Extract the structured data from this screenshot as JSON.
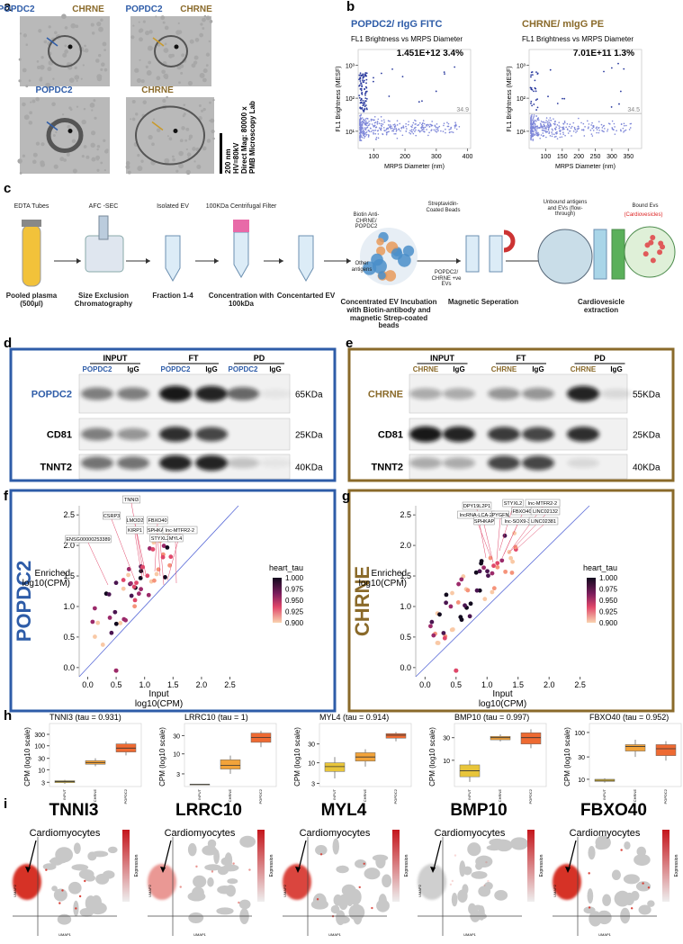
{
  "panel_a": {
    "letter": "a",
    "labels": [
      "POPDC2",
      "CHRNE",
      "POPDC2",
      "CHRNE",
      "POPDC2",
      "CHRNE"
    ],
    "scale_bar": "200 nm",
    "microscope": [
      "HV=80kV",
      "Direct Mag: 80000 x",
      "PMB Microscopy Lab"
    ]
  },
  "panel_b": {
    "letter": "b",
    "subtitle": "FL1 Brightness  vs MRPS Diameter",
    "ylabel": "FL1 Brightness (MESF)",
    "xlabel": "MRPS Diameter (nm)",
    "yticks": [
      {
        "value": 10,
        "label": "10¹"
      },
      {
        "value": 100,
        "label": "10²"
      },
      {
        "value": 1000,
        "label": "10³"
      }
    ],
    "ylim": [
      3,
      3000
    ],
    "plots": [
      {
        "title": "POPDC2/ rIgG FITC",
        "stat": "1.451E+12  3.4%",
        "threshold": 34.9,
        "xlim": [
          50,
          410
        ],
        "xticks": [
          100,
          200,
          300,
          400
        ]
      },
      {
        "title": "CHRNE/ mIgG PE",
        "stat": "7.01E+11  1.3%",
        "threshold": 34.5,
        "xlim": [
          50,
          390
        ],
        "xticks": [
          100,
          150,
          200,
          250,
          300,
          350
        ]
      }
    ]
  },
  "panel_c": {
    "letter": "c",
    "steps": [
      {
        "top": "EDTA Tubes",
        "bottom": "Pooled plasma (500µl)"
      },
      {
        "top": "AFC -SEC",
        "bottom": "Size Exclusion Chromatography"
      },
      {
        "top": "Isolated EV",
        "bottom": "Fraction 1-4"
      },
      {
        "top": "100KDa Centrifugal Filter",
        "bottom": "Concentration with 100kDa"
      },
      {
        "bottom": "Concentarted EV"
      },
      {
        "bottom": "Concentrated EV Incubation with Biotin-antibody and magnetic Strep-coated beads"
      },
      {
        "bottom": "Magnetic Seperation"
      },
      {
        "bottom": "Cardiovesicle extraction"
      }
    ],
    "callouts": [
      "Biotin Anti-CHRNE/ POPDC2",
      "Streptavidin-Coated Beads",
      "Other antigens",
      "POPDC2/ CHRNE +ve EVs",
      "Unbound antigens and EVs (flow-through)",
      "Bound Evs",
      "(Cardiovesicles)"
    ]
  },
  "panel_d": {
    "letter": "d",
    "groups": [
      "INPUT",
      "FT",
      "PD"
    ],
    "lanes": [
      "POPDC2",
      "IgG"
    ],
    "rows": [
      {
        "name": "POPDC2",
        "size": "65KDa"
      },
      {
        "name": "CD81",
        "size": "25KDa"
      },
      {
        "name": "TNNT2",
        "size": "40KDa"
      }
    ]
  },
  "panel_e": {
    "letter": "e",
    "groups": [
      "INPUT",
      "FT",
      "PD"
    ],
    "lanes": [
      "CHRNE",
      "IgG"
    ],
    "rows": [
      {
        "name": "CHRNE",
        "size": "55KDa"
      },
      {
        "name": "CD81",
        "size": "25KDa"
      },
      {
        "name": "TNNT2",
        "size": "40KDa"
      }
    ]
  },
  "panel_f": {
    "letter": "f",
    "side_label": "POPDC2",
    "genes": [
      "TNNI3",
      "CSRP3",
      "LMOD2",
      "KIRP1",
      "FBXO40",
      "SPHKAP",
      "lnc-MTFR2-2",
      "STYXL2",
      "MYL4",
      "ENSG00000253389"
    ]
  },
  "panel_g": {
    "letter": "g",
    "side_label": "CHRNE",
    "genes": [
      "DPY19L2P1",
      "STYXL2",
      "lnc-MTFR2-2",
      "lncRNA-LCA-2",
      "PYGFN",
      "FBXO40",
      "LINC02132",
      "SPHKAP",
      "lnc-SOX9-3",
      "LINC02381"
    ]
  },
  "scatter_axes": {
    "ylabel": [
      "Enriched",
      "log10(CPM)"
    ],
    "xlabel": [
      "Input",
      "log10(CPM)"
    ],
    "lim": [
      -0.15,
      2.65
    ],
    "ticks": [
      {
        "value": 0,
        "label": "0.0"
      },
      {
        "value": 0.5,
        "label": "0.5"
      },
      {
        "value": 1,
        "label": "1.0"
      },
      {
        "value": 1.5,
        "label": "1.5"
      },
      {
        "value": 2,
        "label": "2.0"
      },
      {
        "value": 2.5,
        "label": "2.5"
      }
    ],
    "legend_title": "heart_tau",
    "legend_lim": [
      0.9,
      1
    ],
    "legend_ticks": [
      {
        "value": 1,
        "label": "1.000"
      },
      {
        "value": 0.975,
        "label": "0.975"
      },
      {
        "value": 0.95,
        "label": "0.950"
      },
      {
        "value": 0.925,
        "label": "0.925"
      },
      {
        "value": 0.9,
        "label": "0.900"
      }
    ]
  },
  "panel_h": {
    "letter": "h",
    "ylabel": "CPM (log10 scale)",
    "categories": [
      "INPUT",
      "CHRNE",
      "POPDC2"
    ],
    "colors": [
      "#e8c53a",
      "#f2a33a",
      "#ee6a32"
    ],
    "plots": [
      {
        "title": "TNNI3 (tau = 0.931)",
        "ylim": [
          2,
          600
        ],
        "yticks": [
          3,
          10,
          30,
          100,
          300
        ],
        "boxes": [
          {
            "lo": 2.6,
            "q1": 2.9,
            "median": 3.2,
            "q3": 3.5,
            "hi": 3.8
          },
          {
            "lo": 14,
            "q1": 17,
            "median": 20,
            "q3": 24,
            "hi": 30
          },
          {
            "lo": 40,
            "q1": 55,
            "median": 80,
            "q3": 120,
            "hi": 150
          }
        ]
      },
      {
        "title": "LRRC10 (tau = 1)",
        "ylim": [
          1.4,
          50
        ],
        "yticks": [
          3,
          10,
          30
        ],
        "boxes": [
          {
            "lo": 1.6,
            "q1": 1.6,
            "median": 1.6,
            "q3": 1.6,
            "hi": 1.6
          },
          {
            "lo": 3,
            "q1": 4,
            "median": 5,
            "q3": 7,
            "hi": 9
          },
          {
            "lo": 15,
            "q1": 20,
            "median": 27,
            "q3": 35,
            "hi": 40
          }
        ]
      },
      {
        "title": "MYL4 (tau = 0.914)",
        "ylim": [
          2.5,
          80
        ],
        "yticks": [
          3,
          10,
          30
        ],
        "boxes": [
          {
            "lo": 4,
            "q1": 6,
            "median": 8,
            "q3": 10,
            "hi": 14
          },
          {
            "lo": 8,
            "q1": 11,
            "median": 14,
            "q3": 18,
            "hi": 22
          },
          {
            "lo": 35,
            "q1": 42,
            "median": 50,
            "q3": 55,
            "hi": 60
          }
        ]
      },
      {
        "title": "BMP10 (tau = 0.997)",
        "ylim": [
          2.8,
          50
        ],
        "yticks": [
          10,
          30
        ],
        "boxes": [
          {
            "lo": 3.5,
            "q1": 4.5,
            "median": 6,
            "q3": 8,
            "hi": 10
          },
          {
            "lo": 25,
            "q1": 27,
            "median": 30,
            "q3": 32,
            "hi": 35
          },
          {
            "lo": 18,
            "q1": 22,
            "median": 30,
            "q3": 38,
            "hi": 45
          }
        ]
      },
      {
        "title": "FBXO40 (tau = 0.952)",
        "ylim": [
          7,
          130
        ],
        "yticks": [
          10,
          30,
          100
        ],
        "boxes": [
          {
            "lo": 8.5,
            "q1": 9,
            "median": 9.5,
            "q3": 10,
            "hi": 10.5
          },
          {
            "lo": 30,
            "q1": 40,
            "median": 50,
            "q3": 55,
            "hi": 70
          },
          {
            "lo": 25,
            "q1": 32,
            "median": 45,
            "q3": 55,
            "hi": 65
          }
        ]
      }
    ]
  },
  "panel_i": {
    "letter": "i",
    "genes": [
      "TNNI3",
      "LRRC10",
      "MYL4",
      "BMP10",
      "FBXO40"
    ],
    "annotation": "Cardiomyocytes",
    "xlabel": "UMAP1",
    "ylabel": "UMAP2",
    "colorbar": "Expression"
  }
}
